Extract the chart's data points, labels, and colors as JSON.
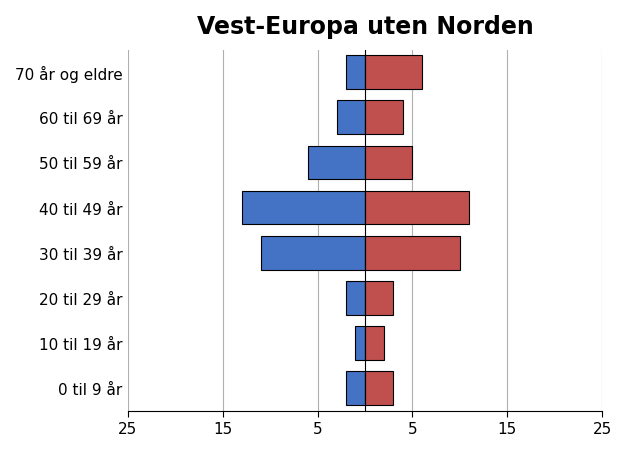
{
  "title": "Vest-Europa uten Norden",
  "categories": [
    "0 til 9 år",
    "10 til 19 år",
    "20 til 29 år",
    "30 til 39 år",
    "40 til 49 år",
    "50 til 59 år",
    "60 til 69 år",
    "70 år og eldre"
  ],
  "left_values": [
    2,
    1,
    2,
    11,
    13,
    6,
    3,
    2
  ],
  "right_values": [
    3,
    2,
    3,
    10,
    11,
    5,
    4,
    6
  ],
  "left_color": "#4472C4",
  "right_color": "#C0504D",
  "xlim": [
    -25,
    25
  ],
  "xticks": [
    -25,
    -15,
    -5,
    5,
    15,
    25
  ],
  "xticklabels": [
    "25",
    "15",
    "5",
    "5",
    "15",
    "25"
  ],
  "bar_edgecolor": "#000000",
  "background_color": "#FFFFFF",
  "grid_color": "#B0B0B0",
  "title_fontsize": 17,
  "tick_fontsize": 11,
  "label_fontsize": 11
}
